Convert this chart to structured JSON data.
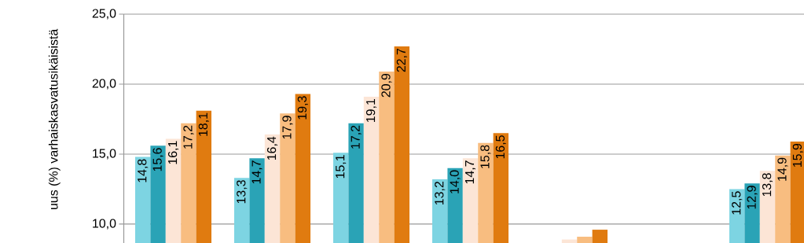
{
  "chart_data": {
    "type": "bar",
    "ylabel": "uus (%) varhaiskasvatusikäisistä",
    "categories": [
      null,
      null,
      null,
      null,
      null,
      null,
      null
    ],
    "series": [
      {
        "color": "#7dd4e2",
        "values": [
          14.8,
          13.3,
          15.1,
          13.2,
          null,
          null,
          12.5
        ],
        "value_labels": [
          "14,8",
          "13,3",
          "15,1",
          "13,2",
          null,
          null,
          "12,5"
        ]
      },
      {
        "color": "#2aa3b6",
        "values": [
          15.6,
          14.7,
          17.2,
          14.0,
          null,
          null,
          12.9
        ],
        "value_labels": [
          "15,6",
          "14,7",
          "17,2",
          "14,0",
          null,
          null,
          "12,9"
        ]
      },
      {
        "color": "#fce5d6",
        "values": [
          16.1,
          16.4,
          19.1,
          14.7,
          8.9,
          null,
          13.8
        ],
        "value_labels": [
          "16,1",
          "16,4",
          "19,1",
          "14,7",
          null,
          null,
          "13,8"
        ]
      },
      {
        "color": "#f8bd80",
        "values": [
          17.2,
          17.9,
          20.9,
          15.8,
          9.1,
          null,
          14.9
        ],
        "value_labels": [
          "17,2",
          "17,9",
          "20,9",
          "15,8",
          null,
          null,
          "14,9"
        ]
      },
      {
        "color": "#e07b10",
        "values": [
          18.1,
          19.3,
          22.7,
          16.5,
          9.6,
          null,
          15.9
        ],
        "value_labels": [
          "18,1",
          "19,3",
          "22,7",
          "16,5",
          null,
          null,
          "15,9"
        ]
      }
    ],
    "ylim": [
      8.65,
      25
    ],
    "yticks": [
      {
        "value": 10,
        "label": "10,0"
      },
      {
        "value": 15,
        "label": "15,0"
      },
      {
        "value": 20,
        "label": "20,0"
      },
      {
        "value": 25,
        "label": "25,0"
      }
    ],
    "grid": "y"
  }
}
